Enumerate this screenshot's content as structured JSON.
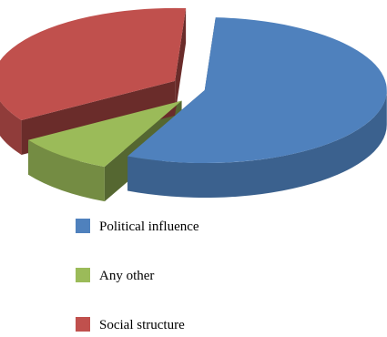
{
  "chart_data": {
    "type": "pie",
    "style": "3d-exploded",
    "title": "",
    "legend_position": "bottom-left",
    "slices": [
      {
        "name": "Political influence",
        "value": 56,
        "color": "#4F81BD"
      },
      {
        "name": "Any other",
        "value": 9,
        "color": "#9BBB59"
      },
      {
        "name": "Social structure",
        "value": 35,
        "color": "#C0504D"
      }
    ]
  }
}
